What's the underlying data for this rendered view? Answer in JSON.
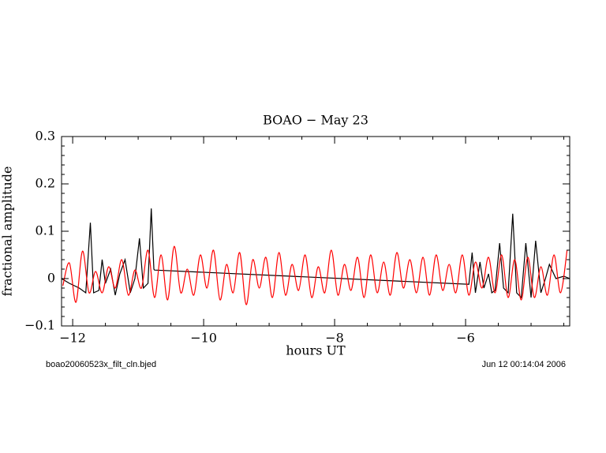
{
  "chart_data": {
    "type": "line",
    "title": "BOAO − May 23",
    "xlabel": "hours UT",
    "ylabel": "fractional amplitude",
    "footer_left": "boao20060523x_filt_cln.bjed",
    "footer_right": "Jun 12 00:14:04 2006",
    "xlim": [
      -12.17,
      -4.41
    ],
    "ylim": [
      -0.1,
      0.3
    ],
    "xticks": [
      {
        "value": -12,
        "label": "−12"
      },
      {
        "value": -10,
        "label": "−10"
      },
      {
        "value": -8,
        "label": "−8"
      },
      {
        "value": -6,
        "label": "−6"
      }
    ],
    "yticks": [
      {
        "value": -0.1,
        "label": "−0.1"
      },
      0,
      0.1,
      0.2,
      0.3
    ],
    "xminorticks": [
      -11.5,
      -11,
      -10.5,
      -9.5,
      -9,
      -8.5,
      -7.5,
      -7,
      -6.5,
      -5.5,
      -5,
      -4.5
    ],
    "yminorticks": [
      -0.08,
      -0.06,
      -0.04,
      -0.02,
      0.02,
      0.04,
      0.06,
      0.08,
      0.12,
      0.14,
      0.16,
      0.18,
      0.22,
      0.24,
      0.26,
      0.28
    ],
    "series": [
      {
        "color": "#000000",
        "smooth": false,
        "x": [
          -12.17,
          -12.05,
          -11.9,
          -11.8,
          -11.73,
          -11.68,
          -11.6,
          -11.55,
          -11.5,
          -11.42,
          -11.35,
          -11.28,
          -11.2,
          -11.12,
          -11.05,
          -10.98,
          -10.92,
          -10.85,
          -10.8,
          -10.76,
          -10.75,
          -5.95,
          -5.9,
          -5.85,
          -5.78,
          -5.72,
          -5.65,
          -5.6,
          -5.55,
          -5.48,
          -5.42,
          -5.35,
          -5.28,
          -5.22,
          -5.15,
          -5.08,
          -5.0,
          -4.93,
          -4.85,
          -4.78,
          -4.72,
          -4.62,
          -4.5,
          -4.41
        ],
        "values": [
          0.0,
          -0.01,
          -0.02,
          -0.03,
          0.118,
          -0.03,
          -0.025,
          0.04,
          -0.01,
          0.02,
          -0.035,
          0.01,
          0.04,
          -0.03,
          0.0,
          0.085,
          -0.02,
          -0.01,
          0.148,
          0.02,
          0.018,
          -0.012,
          0.055,
          -0.03,
          0.035,
          -0.02,
          0.01,
          -0.03,
          -0.025,
          0.075,
          -0.02,
          -0.03,
          0.137,
          -0.03,
          -0.04,
          0.075,
          -0.04,
          0.08,
          -0.03,
          0.0,
          0.03,
          0.0,
          0.005,
          0.0
        ]
      },
      {
        "color": "#ff0000",
        "smooth": true,
        "x": [
          -12.15,
          -12.05,
          -11.95,
          -11.85,
          -11.75,
          -11.65,
          -11.55,
          -11.45,
          -11.35,
          -11.25,
          -11.15,
          -11.05,
          -10.95,
          -10.85,
          -10.75,
          -10.65,
          -10.55,
          -10.45,
          -10.35,
          -10.25,
          -10.15,
          -10.05,
          -9.95,
          -9.85,
          -9.75,
          -9.65,
          -9.55,
          -9.45,
          -9.35,
          -9.25,
          -9.15,
          -9.05,
          -8.95,
          -8.85,
          -8.75,
          -8.65,
          -8.55,
          -8.45,
          -8.35,
          -8.25,
          -8.15,
          -8.05,
          -7.95,
          -7.85,
          -7.75,
          -7.65,
          -7.55,
          -7.45,
          -7.35,
          -7.25,
          -7.15,
          -7.05,
          -6.95,
          -6.85,
          -6.75,
          -6.65,
          -6.55,
          -6.45,
          -6.35,
          -6.25,
          -6.15,
          -6.05,
          -5.95,
          -5.85,
          -5.75,
          -5.65,
          -5.55,
          -5.45,
          -5.35,
          -5.25,
          -5.15,
          -5.05,
          -4.95,
          -4.85,
          -4.75,
          -4.65,
          -4.55,
          -4.45
        ],
        "values": [
          -0.015,
          0.033,
          -0.05,
          0.058,
          -0.03,
          0.015,
          -0.03,
          0.025,
          -0.02,
          0.04,
          -0.035,
          0.018,
          -0.02,
          0.06,
          -0.04,
          0.05,
          -0.045,
          0.068,
          -0.03,
          0.02,
          -0.035,
          0.05,
          -0.02,
          0.06,
          -0.045,
          0.03,
          -0.03,
          0.055,
          -0.055,
          0.04,
          -0.02,
          0.045,
          -0.04,
          0.055,
          -0.035,
          0.03,
          -0.025,
          0.05,
          -0.04,
          0.025,
          -0.03,
          0.06,
          -0.035,
          0.03,
          -0.025,
          0.045,
          -0.04,
          0.05,
          -0.03,
          0.035,
          -0.035,
          0.055,
          -0.02,
          0.04,
          -0.03,
          0.045,
          -0.035,
          0.05,
          -0.025,
          0.03,
          -0.03,
          0.05,
          -0.035,
          0.035,
          -0.02,
          0.045,
          -0.03,
          0.05,
          -0.04,
          0.04,
          -0.045,
          0.045,
          -0.04,
          0.025,
          -0.035,
          0.05,
          -0.03,
          0.06
        ]
      }
    ]
  }
}
